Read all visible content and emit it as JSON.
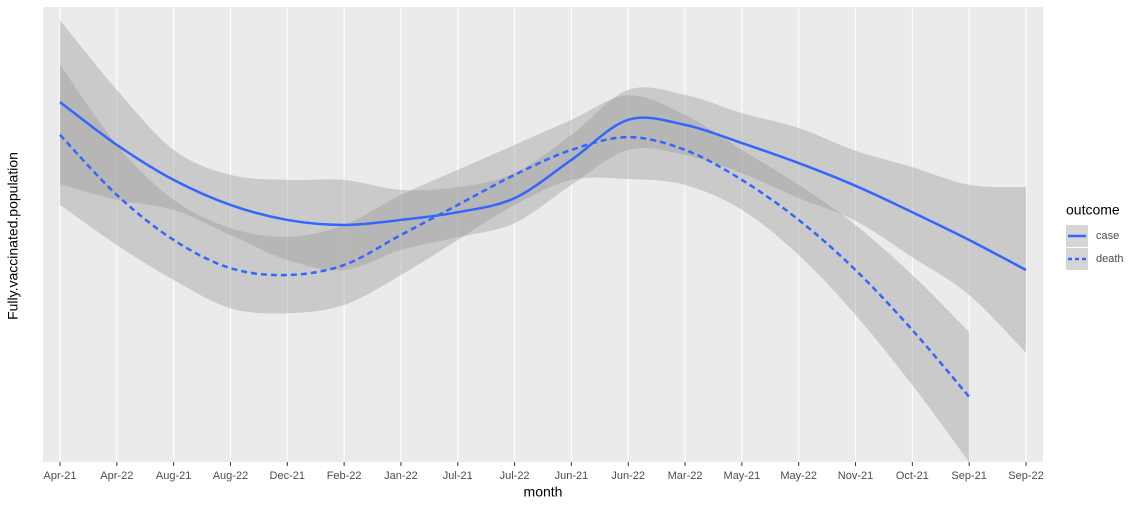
{
  "chart_data": {
    "type": "smooth-line",
    "x_label": "month",
    "y_label": "Fully.vaccinated.population",
    "legend_title": "outcome",
    "categories": [
      "Apr-21",
      "Apr-22",
      "Aug-21",
      "Aug-22",
      "Dec-21",
      "Feb-22",
      "Jan-22",
      "Jul-21",
      "Jul-22",
      "Jun-21",
      "Jun-22",
      "Mar-22",
      "May-21",
      "May-22",
      "Nov-21",
      "Oct-21",
      "Sep-21",
      "Sep-22"
    ],
    "ylim": [
      0,
      100
    ],
    "grid": true,
    "band_color": "#999999",
    "series": [
      {
        "name": "case",
        "color": "#3366ff",
        "dash": false,
        "values": [
          79.1,
          69.7,
          62.0,
          56.5,
          53.2,
          52.1,
          53.2,
          54.9,
          58.0,
          66.4,
          75.2,
          74.1,
          70.1,
          65.7,
          60.7,
          54.9,
          48.8,
          42.2
        ],
        "ymin": [
          61.1,
          57.6,
          55.4,
          49.9,
          44.4,
          42.2,
          46.6,
          49.4,
          52.5,
          60.9,
          68.6,
          67.5,
          63.5,
          58.0,
          53.0,
          45.0,
          36.7,
          24.0
        ],
        "ymax": [
          97.1,
          81.8,
          68.6,
          63.1,
          62.0,
          62.0,
          59.8,
          60.4,
          63.5,
          71.9,
          81.8,
          80.7,
          76.7,
          73.4,
          68.4,
          64.8,
          60.9,
          60.4
        ]
      },
      {
        "name": "death",
        "color": "#3366ff",
        "dash": true,
        "values": [
          71.9,
          58.7,
          48.8,
          42.6,
          41.1,
          43.3,
          49.9,
          56.5,
          63.1,
          68.6,
          71.4,
          68.6,
          62.0,
          53.2,
          42.2,
          29.0,
          14.3,
          null
        ],
        "ymin": [
          56.5,
          47.7,
          40.0,
          33.8,
          32.7,
          34.5,
          41.1,
          48.8,
          56.5,
          62.0,
          62.2,
          60.9,
          55.4,
          45.5,
          32.3,
          16.9,
          0.0,
          null
        ],
        "ymax": [
          87.3,
          69.7,
          57.6,
          51.4,
          49.5,
          52.1,
          58.7,
          64.2,
          69.7,
          75.2,
          80.6,
          76.3,
          68.6,
          60.9,
          52.1,
          41.1,
          28.6,
          null
        ]
      }
    ]
  }
}
